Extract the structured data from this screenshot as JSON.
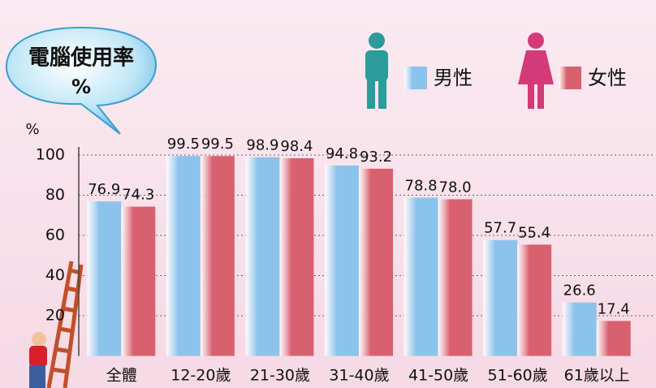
{
  "chart_data": {
    "type": "bar",
    "title": "電腦使用率",
    "subtitle": "%",
    "y_label": "%",
    "categories": [
      "全體",
      "12-20歲",
      "21-30歲",
      "31-40歲",
      "41-50歲",
      "51-60歲",
      "61歲以上"
    ],
    "series": [
      {
        "name": "男性",
        "color": "#8cc3ec",
        "values": [
          76.9,
          99.5,
          98.9,
          94.8,
          78.8,
          57.7,
          26.6
        ],
        "value_labels": [
          "76.9",
          "99.5",
          "98.9",
          "94.8",
          "78.8",
          "57.7",
          "26.6"
        ]
      },
      {
        "name": "女性",
        "color": "#d9606e",
        "values": [
          74.3,
          99.5,
          98.4,
          93.2,
          78.0,
          55.4,
          17.4
        ],
        "value_labels": [
          "74.3",
          "99.5",
          "98.4",
          "93.2",
          "78.0",
          "55.4",
          "17.4"
        ]
      }
    ],
    "ylim": [
      0,
      100
    ],
    "yticks": [
      20,
      40,
      60,
      80,
      100
    ],
    "grid": true
  }
}
